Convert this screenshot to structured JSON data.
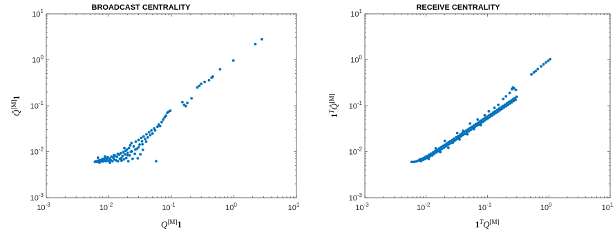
{
  "chart_data": [
    {
      "type": "scatter",
      "title": "BROADCAST CENTRALITY",
      "xlabel": "Q^[M]1",
      "ylabel": "Q̂^[M]1",
      "xscale": "log",
      "yscale": "log",
      "xlim": [
        0.001,
        10
      ],
      "ylim": [
        0.001,
        10
      ],
      "x_ticks": [
        {
          "base": "10",
          "exp": "-3"
        },
        {
          "base": "10",
          "exp": "-2"
        },
        {
          "base": "10",
          "exp": "-1"
        },
        {
          "base": "10",
          "exp": "0"
        },
        {
          "base": "10",
          "exp": "1"
        }
      ],
      "y_ticks": [
        {
          "base": "10",
          "exp": "-3"
        },
        {
          "base": "10",
          "exp": "-2"
        },
        {
          "base": "10",
          "exp": "-1"
        },
        {
          "base": "10",
          "exp": "0"
        },
        {
          "base": "10",
          "exp": "1"
        }
      ],
      "color": "#0072bd",
      "points": [
        [
          0.006,
          0.006
        ],
        [
          0.0062,
          0.0062
        ],
        [
          0.0065,
          0.006
        ],
        [
          0.0068,
          0.0064
        ],
        [
          0.007,
          0.006
        ],
        [
          0.0072,
          0.0066
        ],
        [
          0.0075,
          0.0062
        ],
        [
          0.0078,
          0.0068
        ],
        [
          0.008,
          0.0061
        ],
        [
          0.0082,
          0.007
        ],
        [
          0.0085,
          0.0064
        ],
        [
          0.0088,
          0.0072
        ],
        [
          0.009,
          0.0062
        ],
        [
          0.0093,
          0.0068
        ],
        [
          0.0096,
          0.0075
        ],
        [
          0.0099,
          0.0063
        ],
        [
          0.0103,
          0.0071
        ],
        [
          0.0107,
          0.0066
        ],
        [
          0.011,
          0.0078
        ],
        [
          0.0114,
          0.0062
        ],
        [
          0.0118,
          0.0074
        ],
        [
          0.0122,
          0.0068
        ],
        [
          0.0126,
          0.0082
        ],
        [
          0.013,
          0.0065
        ],
        [
          0.0135,
          0.0077
        ],
        [
          0.014,
          0.0062
        ],
        [
          0.0145,
          0.0086
        ],
        [
          0.015,
          0.007
        ],
        [
          0.0155,
          0.0092
        ],
        [
          0.016,
          0.0064
        ],
        [
          0.0165,
          0.008
        ],
        [
          0.017,
          0.0098
        ],
        [
          0.0175,
          0.0068
        ],
        [
          0.018,
          0.0088
        ],
        [
          0.0185,
          0.0105
        ],
        [
          0.019,
          0.0073
        ],
        [
          0.0195,
          0.0112
        ],
        [
          0.02,
          0.0094
        ],
        [
          0.0205,
          0.0062
        ],
        [
          0.021,
          0.012
        ],
        [
          0.0215,
          0.0083
        ],
        [
          0.022,
          0.0138
        ],
        [
          0.0225,
          0.01
        ],
        [
          0.023,
          0.0155
        ],
        [
          0.024,
          0.007
        ],
        [
          0.025,
          0.013
        ],
        [
          0.026,
          0.009
        ],
        [
          0.027,
          0.0165
        ],
        [
          0.028,
          0.0115
        ],
        [
          0.029,
          0.0072
        ],
        [
          0.03,
          0.018
        ],
        [
          0.031,
          0.0143
        ],
        [
          0.032,
          0.0088
        ],
        [
          0.033,
          0.02
        ],
        [
          0.034,
          0.0168
        ],
        [
          0.035,
          0.011
        ],
        [
          0.036,
          0.0215
        ],
        [
          0.038,
          0.0188
        ],
        [
          0.04,
          0.024
        ],
        [
          0.042,
          0.0205
        ],
        [
          0.044,
          0.0265
        ],
        [
          0.046,
          0.023
        ],
        [
          0.048,
          0.029
        ],
        [
          0.05,
          0.025
        ],
        [
          0.053,
          0.032
        ],
        [
          0.055,
          0.029
        ],
        [
          0.057,
          0.0062
        ],
        [
          0.06,
          0.035
        ],
        [
          0.063,
          0.039
        ],
        [
          0.066,
          0.036
        ],
        [
          0.07,
          0.044
        ],
        [
          0.074,
          0.05
        ],
        [
          0.078,
          0.056
        ],
        [
          0.082,
          0.061
        ],
        [
          0.086,
          0.07
        ],
        [
          0.09,
          0.074
        ],
        [
          0.096,
          0.078
        ],
        [
          0.0067,
          0.0074
        ],
        [
          0.0071,
          0.0058
        ],
        [
          0.0087,
          0.0079
        ],
        [
          0.0104,
          0.0058
        ],
        [
          0.0121,
          0.0084
        ],
        [
          0.0139,
          0.009
        ],
        [
          0.0158,
          0.0072
        ],
        [
          0.0177,
          0.012
        ],
        [
          0.0198,
          0.0084
        ],
        [
          0.0233,
          0.0102
        ],
        [
          0.0265,
          0.0112
        ],
        [
          0.0299,
          0.0125
        ],
        [
          0.0345,
          0.0145
        ],
        [
          0.0395,
          0.0165
        ],
        [
          0.15,
          0.12
        ],
        [
          0.16,
          0.105
        ],
        [
          0.17,
          0.098
        ],
        [
          0.18,
          0.115
        ],
        [
          0.21,
          0.145
        ],
        [
          0.26,
          0.25
        ],
        [
          0.28,
          0.27
        ],
        [
          0.3,
          0.3
        ],
        [
          0.34,
          0.33
        ],
        [
          0.4,
          0.36
        ],
        [
          0.44,
          0.41
        ],
        [
          0.46,
          0.43
        ],
        [
          0.6,
          0.62
        ],
        [
          0.98,
          0.96
        ],
        [
          2.2,
          2.2
        ],
        [
          2.8,
          2.8
        ]
      ]
    },
    {
      "type": "scatter",
      "title": "RECEIVE  CENTRALITY",
      "xlabel": "1^T Q^[M]",
      "ylabel": "1^T Q̂^[M]",
      "xscale": "log",
      "yscale": "log",
      "xlim": [
        0.001,
        10
      ],
      "ylim": [
        0.001,
        10
      ],
      "x_ticks": [
        {
          "base": "10",
          "exp": "-3"
        },
        {
          "base": "10",
          "exp": "-2"
        },
        {
          "base": "10",
          "exp": "-1"
        },
        {
          "base": "10",
          "exp": "0"
        },
        {
          "base": "10",
          "exp": "1"
        }
      ],
      "y_ticks": [
        {
          "base": "10",
          "exp": "-3"
        },
        {
          "base": "10",
          "exp": "-2"
        },
        {
          "base": "10",
          "exp": "-1"
        },
        {
          "base": "10",
          "exp": "0"
        },
        {
          "base": "10",
          "exp": "1"
        }
      ],
      "color": "#0072bd",
      "points": [
        [
          0.0058,
          0.006
        ],
        [
          0.0063,
          0.006
        ],
        [
          0.0068,
          0.0061
        ],
        [
          0.0072,
          0.0063
        ],
        [
          0.0076,
          0.0065
        ],
        [
          0.0079,
          0.0068
        ],
        [
          0.0082,
          0.0062
        ],
        [
          0.0085,
          0.007
        ],
        [
          0.0088,
          0.0066
        ],
        [
          0.0091,
          0.0073
        ],
        [
          0.0094,
          0.0069
        ],
        [
          0.0097,
          0.0077
        ],
        [
          0.01,
          0.0072
        ],
        [
          0.0104,
          0.0081
        ],
        [
          0.0108,
          0.0076
        ],
        [
          0.0112,
          0.0086
        ],
        [
          0.0116,
          0.008
        ],
        [
          0.012,
          0.0091
        ],
        [
          0.0125,
          0.0085
        ],
        [
          0.013,
          0.0097
        ],
        [
          0.0135,
          0.009
        ],
        [
          0.014,
          0.0103
        ],
        [
          0.0145,
          0.0096
        ],
        [
          0.015,
          0.011
        ],
        [
          0.0156,
          0.0102
        ],
        [
          0.0162,
          0.0117
        ],
        [
          0.0168,
          0.0108
        ],
        [
          0.0174,
          0.0125
        ],
        [
          0.018,
          0.0115
        ],
        [
          0.0187,
          0.0133
        ],
        [
          0.0194,
          0.0122
        ],
        [
          0.0201,
          0.0141
        ],
        [
          0.0208,
          0.013
        ],
        [
          0.0216,
          0.015
        ],
        [
          0.0224,
          0.0138
        ],
        [
          0.0232,
          0.016
        ],
        [
          0.024,
          0.0147
        ],
        [
          0.0249,
          0.017
        ],
        [
          0.0258,
          0.0157
        ],
        [
          0.0268,
          0.0181
        ],
        [
          0.0278,
          0.0167
        ],
        [
          0.0288,
          0.0193
        ],
        [
          0.0299,
          0.0178
        ],
        [
          0.031,
          0.0206
        ],
        [
          0.0322,
          0.019
        ],
        [
          0.0334,
          0.022
        ],
        [
          0.0346,
          0.0203
        ],
        [
          0.0359,
          0.0235
        ],
        [
          0.0372,
          0.0216
        ],
        [
          0.0386,
          0.0251
        ],
        [
          0.04,
          0.0231
        ],
        [
          0.0415,
          0.0268
        ],
        [
          0.043,
          0.0246
        ],
        [
          0.0446,
          0.0286
        ],
        [
          0.0463,
          0.0263
        ],
        [
          0.048,
          0.0305
        ],
        [
          0.0498,
          0.0281
        ],
        [
          0.0516,
          0.0325
        ],
        [
          0.0535,
          0.03
        ],
        [
          0.0555,
          0.0347
        ],
        [
          0.0576,
          0.032
        ],
        [
          0.0597,
          0.037
        ],
        [
          0.0619,
          0.0342
        ],
        [
          0.0642,
          0.0395
        ],
        [
          0.0666,
          0.0365
        ],
        [
          0.0691,
          0.0421
        ],
        [
          0.0717,
          0.039
        ],
        [
          0.0743,
          0.045
        ],
        [
          0.0771,
          0.0416
        ],
        [
          0.08,
          0.048
        ],
        [
          0.083,
          0.0444
        ],
        [
          0.086,
          0.0512
        ],
        [
          0.0892,
          0.0474
        ],
        [
          0.0925,
          0.0547
        ],
        [
          0.096,
          0.0506
        ],
        [
          0.0995,
          0.0584
        ],
        [
          0.1032,
          0.054
        ],
        [
          0.1071,
          0.0623
        ],
        [
          0.1111,
          0.0577
        ],
        [
          0.1152,
          0.0665
        ],
        [
          0.1195,
          0.0616
        ],
        [
          0.124,
          0.071
        ],
        [
          0.1286,
          0.0658
        ],
        [
          0.1334,
          0.0758
        ],
        [
          0.1383,
          0.0702
        ],
        [
          0.1435,
          0.081
        ],
        [
          0.1488,
          0.075
        ],
        [
          0.1544,
          0.0865
        ],
        [
          0.1601,
          0.08
        ],
        [
          0.1661,
          0.0923
        ],
        [
          0.1723,
          0.0855
        ],
        [
          0.1787,
          0.0985
        ],
        [
          0.1853,
          0.0913
        ],
        [
          0.1922,
          0.1052
        ],
        [
          0.1994,
          0.0975
        ],
        [
          0.2068,
          0.1123
        ],
        [
          0.2145,
          0.1041
        ],
        [
          0.2225,
          0.1199
        ],
        [
          0.2308,
          0.1112
        ],
        [
          0.2394,
          0.128
        ],
        [
          0.2483,
          0.1188
        ],
        [
          0.2576,
          0.1367
        ],
        [
          0.2672,
          0.1268
        ],
        [
          0.2771,
          0.146
        ],
        [
          0.2874,
          0.1354
        ],
        [
          0.2982,
          0.1558
        ],
        [
          0.011,
          0.007
        ],
        [
          0.0126,
          0.0083
        ],
        [
          0.0143,
          0.0118
        ],
        [
          0.017,
          0.0098
        ],
        [
          0.0202,
          0.0172
        ],
        [
          0.023,
          0.0121
        ],
        [
          0.0272,
          0.0158
        ],
        [
          0.032,
          0.0255
        ],
        [
          0.035,
          0.0185
        ],
        [
          0.04,
          0.0285
        ],
        [
          0.047,
          0.024
        ],
        [
          0.052,
          0.041
        ],
        [
          0.06,
          0.031
        ],
        [
          0.069,
          0.05
        ],
        [
          0.078,
          0.038
        ],
        [
          0.09,
          0.062
        ],
        [
          0.105,
          0.076
        ],
        [
          0.13,
          0.09
        ],
        [
          0.15,
          0.105
        ],
        [
          0.18,
          0.14
        ],
        [
          0.2,
          0.16
        ],
        [
          0.23,
          0.19
        ],
        [
          0.25,
          0.23
        ],
        [
          0.27,
          0.24
        ],
        [
          0.29,
          0.22
        ],
        [
          0.26,
          0.25
        ],
        [
          0.52,
          0.48
        ],
        [
          0.57,
          0.53
        ],
        [
          0.61,
          0.57
        ],
        [
          0.66,
          0.63
        ],
        [
          0.75,
          0.72
        ],
        [
          0.82,
          0.8
        ],
        [
          0.9,
          0.88
        ],
        [
          0.98,
          0.95
        ],
        [
          1.05,
          1.03
        ]
      ]
    }
  ]
}
